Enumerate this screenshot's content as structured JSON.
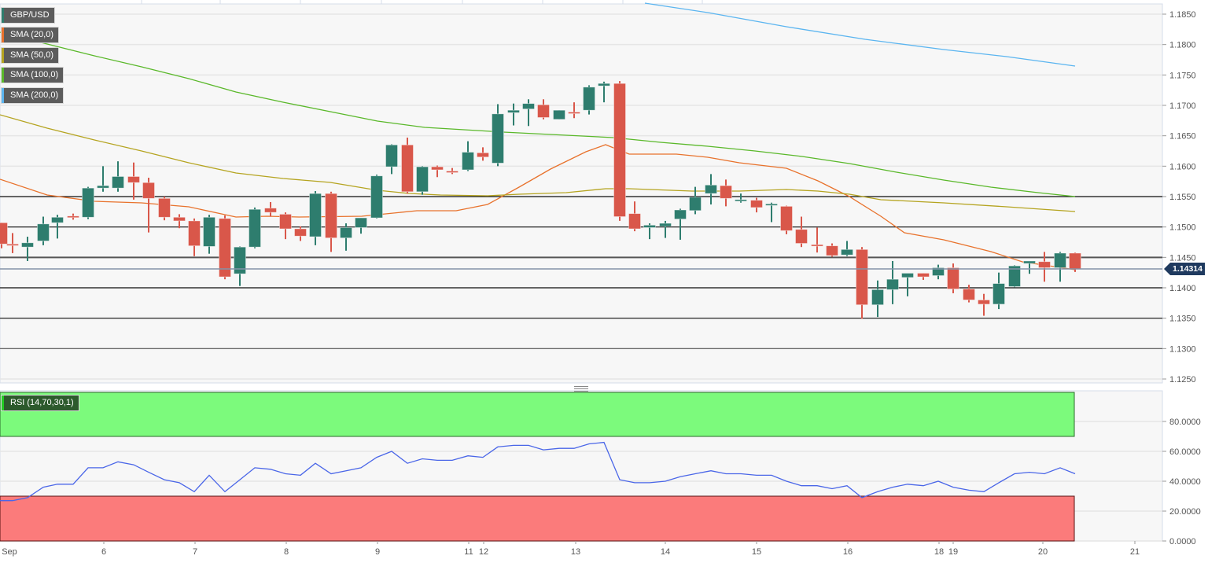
{
  "chart_data": [
    {
      "type": "candlestick",
      "title": "GBP/USD",
      "symbol": "GBP/USD",
      "current_price": "1.14314",
      "yaxis": {
        "ticks": [
          "1.1850",
          "1.1800",
          "1.1750",
          "1.1700",
          "1.1650",
          "1.1600",
          "1.1550",
          "1.1500",
          "1.1450",
          "1.1400",
          "1.1350",
          "1.1300",
          "1.1250"
        ],
        "ylim": [
          1.125,
          1.185
        ]
      },
      "xaxis": {
        "ticks": [
          "Sep",
          "6",
          "7",
          "8",
          "9",
          "11",
          "12",
          "13",
          "14",
          "15",
          "16",
          "18",
          "19",
          "20",
          "21"
        ]
      },
      "grid": true,
      "horizontal_levels": [
        1.155,
        1.15,
        1.145,
        1.14,
        1.135,
        1.13
      ],
      "legend": [
        {
          "label": "GBP/USD",
          "color": "#2e7d6e"
        },
        {
          "label": "SMA (20,0)",
          "color": "#e8722c"
        },
        {
          "label": "SMA (50,0)",
          "color": "#b5a420"
        },
        {
          "label": "SMA (100,0)",
          "color": "#5ab82a"
        },
        {
          "label": "SMA (200,0)",
          "color": "#5bb5f0"
        }
      ],
      "candles": [
        {
          "x": 2,
          "o": 1.1507,
          "h": 1.1507,
          "l": 1.1465,
          "c": 1.1472
        },
        {
          "x": 16,
          "o": 1.1472,
          "h": 1.149,
          "l": 1.1457,
          "c": 1.1471
        },
        {
          "x": 35,
          "o": 1.1467,
          "h": 1.1484,
          "l": 1.1444,
          "c": 1.1474
        },
        {
          "x": 55,
          "o": 1.1477,
          "h": 1.1517,
          "l": 1.147,
          "c": 1.1505
        },
        {
          "x": 73,
          "o": 1.1507,
          "h": 1.152,
          "l": 1.1481,
          "c": 1.1516
        },
        {
          "x": 93,
          "o": 1.1518,
          "h": 1.1522,
          "l": 1.1512,
          "c": 1.1516
        },
        {
          "x": 112,
          "o": 1.1516,
          "h": 1.1566,
          "l": 1.1513,
          "c": 1.1564
        },
        {
          "x": 131,
          "o": 1.1564,
          "h": 1.16,
          "l": 1.1558,
          "c": 1.1568
        },
        {
          "x": 150,
          "o": 1.1564,
          "h": 1.1608,
          "l": 1.1558,
          "c": 1.1583
        },
        {
          "x": 170,
          "o": 1.1583,
          "h": 1.1606,
          "l": 1.1545,
          "c": 1.1573
        },
        {
          "x": 189,
          "o": 1.1573,
          "h": 1.1581,
          "l": 1.1491,
          "c": 1.1547
        },
        {
          "x": 209,
          "o": 1.1547,
          "h": 1.155,
          "l": 1.1511,
          "c": 1.1516
        },
        {
          "x": 228,
          "o": 1.1516,
          "h": 1.1521,
          "l": 1.1498,
          "c": 1.151
        },
        {
          "x": 247,
          "o": 1.151,
          "h": 1.1514,
          "l": 1.1452,
          "c": 1.1469
        },
        {
          "x": 266,
          "o": 1.1468,
          "h": 1.152,
          "l": 1.1456,
          "c": 1.1516
        },
        {
          "x": 286,
          "o": 1.1514,
          "h": 1.1519,
          "l": 1.1414,
          "c": 1.1418
        },
        {
          "x": 305,
          "o": 1.1423,
          "h": 1.1468,
          "l": 1.1403,
          "c": 1.1467
        },
        {
          "x": 324,
          "o": 1.1467,
          "h": 1.1532,
          "l": 1.1465,
          "c": 1.1529
        },
        {
          "x": 344,
          "o": 1.1531,
          "h": 1.1541,
          "l": 1.1517,
          "c": 1.1524
        },
        {
          "x": 363,
          "o": 1.1521,
          "h": 1.1524,
          "l": 1.148,
          "c": 1.1497
        },
        {
          "x": 382,
          "o": 1.1497,
          "h": 1.1501,
          "l": 1.1477,
          "c": 1.1485
        },
        {
          "x": 401,
          "o": 1.1484,
          "h": 1.1559,
          "l": 1.147,
          "c": 1.1555
        },
        {
          "x": 421,
          "o": 1.1555,
          "h": 1.1558,
          "l": 1.1459,
          "c": 1.1482
        },
        {
          "x": 440,
          "o": 1.1482,
          "h": 1.1506,
          "l": 1.1461,
          "c": 1.1499
        },
        {
          "x": 459,
          "o": 1.1499,
          "h": 1.1515,
          "l": 1.1489,
          "c": 1.1515
        },
        {
          "x": 479,
          "o": 1.1515,
          "h": 1.1586,
          "l": 1.1514,
          "c": 1.1584
        },
        {
          "x": 498,
          "o": 1.1599,
          "h": 1.1636,
          "l": 1.1587,
          "c": 1.1635
        },
        {
          "x": 518,
          "o": 1.1635,
          "h": 1.1647,
          "l": 1.1555,
          "c": 1.1558
        },
        {
          "x": 537,
          "o": 1.1558,
          "h": 1.16,
          "l": 1.1553,
          "c": 1.1599
        },
        {
          "x": 556,
          "o": 1.1599,
          "h": 1.1601,
          "l": 1.1582,
          "c": 1.1594
        },
        {
          "x": 575,
          "o": 1.1592,
          "h": 1.1597,
          "l": 1.1587,
          "c": 1.1591
        },
        {
          "x": 595,
          "o": 1.1594,
          "h": 1.1641,
          "l": 1.1592,
          "c": 1.1623
        },
        {
          "x": 614,
          "o": 1.1622,
          "h": 1.1631,
          "l": 1.1609,
          "c": 1.1615
        },
        {
          "x": 633,
          "o": 1.1605,
          "h": 1.1702,
          "l": 1.16,
          "c": 1.1686
        },
        {
          "x": 653,
          "o": 1.1688,
          "h": 1.1703,
          "l": 1.1667,
          "c": 1.1692
        },
        {
          "x": 672,
          "o": 1.1694,
          "h": 1.171,
          "l": 1.1666,
          "c": 1.1703
        },
        {
          "x": 691,
          "o": 1.1701,
          "h": 1.171,
          "l": 1.1677,
          "c": 1.168
        },
        {
          "x": 711,
          "o": 1.1677,
          "h": 1.1692,
          "l": 1.1677,
          "c": 1.1692
        },
        {
          "x": 730,
          "o": 1.1689,
          "h": 1.1705,
          "l": 1.1679,
          "c": 1.1687
        },
        {
          "x": 749,
          "o": 1.1692,
          "h": 1.1733,
          "l": 1.1685,
          "c": 1.173
        },
        {
          "x": 768,
          "o": 1.1732,
          "h": 1.1739,
          "l": 1.1705,
          "c": 1.1736
        },
        {
          "x": 788,
          "o": 1.1736,
          "h": 1.174,
          "l": 1.151,
          "c": 1.1517
        },
        {
          "x": 807,
          "o": 1.1522,
          "h": 1.1542,
          "l": 1.1493,
          "c": 1.1497
        },
        {
          "x": 826,
          "o": 1.1499,
          "h": 1.1506,
          "l": 1.148,
          "c": 1.1503
        },
        {
          "x": 846,
          "o": 1.1501,
          "h": 1.151,
          "l": 1.1482,
          "c": 1.1506
        },
        {
          "x": 865,
          "o": 1.1513,
          "h": 1.153,
          "l": 1.1479,
          "c": 1.1528
        },
        {
          "x": 884,
          "o": 1.1527,
          "h": 1.1566,
          "l": 1.1521,
          "c": 1.1549
        },
        {
          "x": 904,
          "o": 1.1555,
          "h": 1.1587,
          "l": 1.1537,
          "c": 1.1569
        },
        {
          "x": 923,
          "o": 1.1568,
          "h": 1.1578,
          "l": 1.1534,
          "c": 1.1547
        },
        {
          "x": 942,
          "o": 1.1544,
          "h": 1.1555,
          "l": 1.154,
          "c": 1.1545
        },
        {
          "x": 962,
          "o": 1.1544,
          "h": 1.1548,
          "l": 1.1524,
          "c": 1.1532
        },
        {
          "x": 981,
          "o": 1.1536,
          "h": 1.154,
          "l": 1.1508,
          "c": 1.1538
        },
        {
          "x": 1000,
          "o": 1.1534,
          "h": 1.1535,
          "l": 1.1488,
          "c": 1.1494
        },
        {
          "x": 1019,
          "o": 1.1496,
          "h": 1.1517,
          "l": 1.1467,
          "c": 1.1473
        },
        {
          "x": 1039,
          "o": 1.1471,
          "h": 1.1499,
          "l": 1.1458,
          "c": 1.147
        },
        {
          "x": 1058,
          "o": 1.1469,
          "h": 1.1473,
          "l": 1.1451,
          "c": 1.1453
        },
        {
          "x": 1077,
          "o": 1.1454,
          "h": 1.1477,
          "l": 1.1452,
          "c": 1.1463
        },
        {
          "x": 1096,
          "o": 1.1463,
          "h": 1.1467,
          "l": 1.1349,
          "c": 1.1372
        },
        {
          "x": 1116,
          "o": 1.1372,
          "h": 1.1412,
          "l": 1.1352,
          "c": 1.1397
        },
        {
          "x": 1135,
          "o": 1.1397,
          "h": 1.1444,
          "l": 1.1373,
          "c": 1.1414
        },
        {
          "x": 1154,
          "o": 1.1417,
          "h": 1.1422,
          "l": 1.1386,
          "c": 1.1424
        },
        {
          "x": 1174,
          "o": 1.1424,
          "h": 1.1424,
          "l": 1.1413,
          "c": 1.1418
        },
        {
          "x": 1193,
          "o": 1.142,
          "h": 1.1438,
          "l": 1.1414,
          "c": 1.1433
        },
        {
          "x": 1212,
          "o": 1.1433,
          "h": 1.144,
          "l": 1.1391,
          "c": 1.1398
        },
        {
          "x": 1232,
          "o": 1.1398,
          "h": 1.1405,
          "l": 1.1376,
          "c": 1.138
        },
        {
          "x": 1251,
          "o": 1.138,
          "h": 1.139,
          "l": 1.1354,
          "c": 1.1373
        },
        {
          "x": 1270,
          "o": 1.1373,
          "h": 1.1425,
          "l": 1.1365,
          "c": 1.1407
        },
        {
          "x": 1290,
          "o": 1.1402,
          "h": 1.1437,
          "l": 1.1401,
          "c": 1.1436
        },
        {
          "x": 1309,
          "o": 1.144,
          "h": 1.1441,
          "l": 1.1423,
          "c": 1.1444
        },
        {
          "x": 1328,
          "o": 1.1443,
          "h": 1.1459,
          "l": 1.141,
          "c": 1.1433
        },
        {
          "x": 1348,
          "o": 1.1433,
          "h": 1.1459,
          "l": 1.141,
          "c": 1.1457
        },
        {
          "x": 1367,
          "o": 1.1457,
          "h": 1.1458,
          "l": 1.1426,
          "c": 1.1431
        }
      ],
      "sma": {
        "sma20": {
          "color": "#e8722c",
          "points": [
            [
              0,
              228
            ],
            [
              60,
              248
            ],
            [
              120,
              256
            ],
            [
              180,
              258
            ],
            [
              240,
              263
            ],
            [
              300,
              276
            ],
            [
              340,
              275
            ],
            [
              380,
              276
            ],
            [
              460,
              275
            ],
            [
              530,
              268
            ],
            [
              580,
              268
            ],
            [
              620,
              260
            ],
            [
              660,
              238
            ],
            [
              700,
              215
            ],
            [
              745,
              193
            ],
            [
              770,
              184
            ],
            [
              800,
              196
            ],
            [
              860,
              196
            ],
            [
              900,
              200
            ],
            [
              940,
              207
            ],
            [
              1000,
              214
            ],
            [
              1040,
              230
            ],
            [
              1080,
              250
            ],
            [
              1120,
              275
            ],
            [
              1150,
              296
            ],
            [
              1200,
              305
            ],
            [
              1260,
              320
            ],
            [
              1300,
              333
            ],
            [
              1367,
              343
            ]
          ]
        },
        "sma50": {
          "color": "#b5a420",
          "points": [
            [
              0,
              146
            ],
            [
              60,
              163
            ],
            [
              120,
              178
            ],
            [
              180,
              192
            ],
            [
              240,
              207
            ],
            [
              300,
              220
            ],
            [
              360,
              227
            ],
            [
              420,
              232
            ],
            [
              480,
              242
            ],
            [
              520,
              246
            ],
            [
              560,
              248
            ],
            [
              620,
              249
            ],
            [
              660,
              247
            ],
            [
              720,
              245
            ],
            [
              770,
              240
            ],
            [
              800,
              240
            ],
            [
              880,
              243
            ],
            [
              940,
              243
            ],
            [
              1000,
              241
            ],
            [
              1040,
              243
            ],
            [
              1080,
              247
            ],
            [
              1120,
              254
            ],
            [
              1200,
              258
            ],
            [
              1280,
              263
            ],
            [
              1367,
              269
            ]
          ]
        },
        "sma100": {
          "color": "#5ab82a",
          "points": [
            [
              0,
              41
            ],
            [
              60,
              56
            ],
            [
              120,
              71
            ],
            [
              180,
              85
            ],
            [
              240,
              100
            ],
            [
              300,
              117
            ],
            [
              360,
              130
            ],
            [
              420,
              142
            ],
            [
              480,
              154
            ],
            [
              540,
              162
            ],
            [
              640,
              168
            ],
            [
              700,
              171
            ],
            [
              780,
              175
            ],
            [
              840,
              181
            ],
            [
              900,
              186
            ],
            [
              960,
              192
            ],
            [
              1020,
              199
            ],
            [
              1080,
              208
            ],
            [
              1140,
              219
            ],
            [
              1200,
              229
            ],
            [
              1260,
              238
            ],
            [
              1320,
              245
            ],
            [
              1367,
              250
            ]
          ]
        },
        "sma200": {
          "color": "#5bb5f0",
          "points": [
            [
              820,
              4
            ],
            [
              900,
              16
            ],
            [
              1000,
              34
            ],
            [
              1100,
              50
            ],
            [
              1200,
              63
            ],
            [
              1280,
              72
            ],
            [
              1367,
              84
            ]
          ]
        }
      }
    },
    {
      "type": "line",
      "title": "RSI (14,70,30,1)",
      "yaxis": {
        "ticks": [
          "80.0000",
          "60.0000",
          "40.0000",
          "20.0000",
          "0.0000"
        ],
        "ylim": [
          0,
          100
        ]
      },
      "overbought": 70,
      "oversold": 30,
      "overbought_color": "#7cfa7c",
      "oversold_color": "#fb7b7b",
      "line_color": "#4a66e8",
      "x": [
        0,
        16,
        35,
        55,
        73,
        93,
        112,
        131,
        150,
        170,
        189,
        209,
        228,
        247,
        266,
        286,
        305,
        324,
        344,
        363,
        382,
        401,
        421,
        440,
        459,
        479,
        498,
        518,
        537,
        556,
        575,
        595,
        614,
        633,
        653,
        672,
        691,
        711,
        730,
        749,
        768,
        788,
        807,
        826,
        846,
        865,
        884,
        904,
        923,
        942,
        962,
        981,
        1000,
        1019,
        1039,
        1058,
        1077,
        1096,
        1116,
        1135,
        1154,
        1174,
        1193,
        1212,
        1232,
        1251,
        1270,
        1290,
        1309,
        1328,
        1348,
        1367
      ],
      "values": [
        27,
        27,
        29,
        36,
        38,
        38,
        49,
        49,
        53,
        51,
        46,
        41,
        39,
        33,
        44,
        33,
        41,
        49,
        48,
        45,
        44,
        52,
        45,
        47,
        49,
        56,
        60,
        52,
        55,
        54,
        54,
        57,
        56,
        63,
        64,
        64,
        61,
        62,
        62,
        65,
        66,
        41,
        39,
        39,
        40,
        43,
        45,
        47,
        45,
        45,
        44,
        44,
        40,
        37,
        37,
        35,
        37,
        29,
        33,
        36,
        38,
        37,
        40,
        36,
        34,
        33,
        39,
        45,
        46,
        45,
        49,
        45
      ]
    }
  ],
  "legend": {
    "main": [
      {
        "label": "GBP/USD",
        "color": "#2e7d6e"
      },
      {
        "label": "SMA (20,0)",
        "color": "#e8722c"
      },
      {
        "label": "SMA (50,0)",
        "color": "#b5a420"
      },
      {
        "label": "SMA (100,0)",
        "color": "#5ab82a"
      },
      {
        "label": "SMA (200,0)",
        "color": "#5bb5f0"
      }
    ],
    "rsi": {
      "label": "RSI (14,70,30,1)",
      "color": "#22cc22"
    }
  },
  "price_tag": "1.14314",
  "colors": {
    "up": "#2e7d6e",
    "down": "#d9574a",
    "grid": "#e6e6e6",
    "plot_bg": "#f7f7f7",
    "axis_text": "#555555"
  }
}
